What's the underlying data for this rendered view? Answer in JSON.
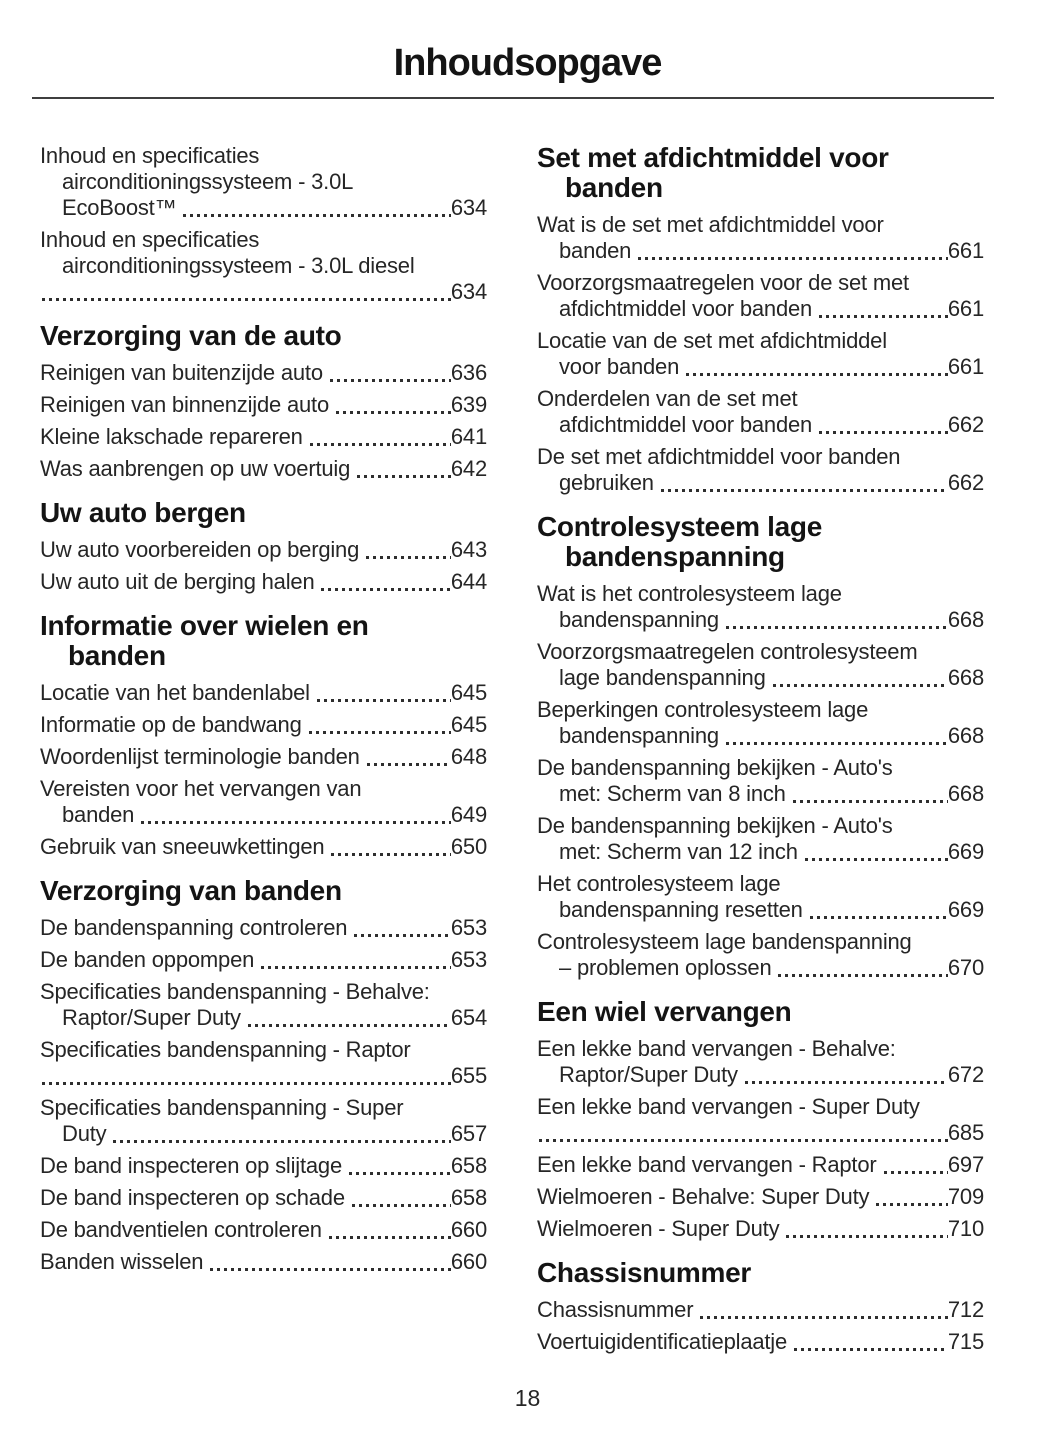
{
  "page": {
    "title": "Inhoudsopgave",
    "page_number": "18"
  },
  "colors": {
    "text": "#262626",
    "heading": "#141414",
    "rule": "#3f3f3f"
  },
  "columns": [
    {
      "sections": [
        {
          "heading_lines": [],
          "entries": [
            {
              "lines": [
                "Inhoud en specificaties",
                "airconditioningssysteem - 3.0L",
                "EcoBoost™"
              ],
              "page": "634"
            },
            {
              "lines": [
                "Inhoud en specificaties",
                "airconditioningssysteem - 3.0L diesel",
                ""
              ],
              "page": "634"
            }
          ]
        },
        {
          "heading_lines": [
            "Verzorging van de auto"
          ],
          "entries": [
            {
              "lines": [
                "Reinigen van buitenzijde auto"
              ],
              "page": "636"
            },
            {
              "lines": [
                "Reinigen van binnenzijde auto"
              ],
              "page": "639"
            },
            {
              "lines": [
                "Kleine lakschade repareren"
              ],
              "page": "641"
            },
            {
              "lines": [
                "Was aanbrengen op uw voertuig"
              ],
              "page": "642"
            }
          ]
        },
        {
          "heading_lines": [
            "Uw auto bergen"
          ],
          "entries": [
            {
              "lines": [
                "Uw auto voorbereiden op berging"
              ],
              "page": "643"
            },
            {
              "lines": [
                "Uw auto uit de berging halen"
              ],
              "page": "644"
            }
          ]
        },
        {
          "heading_lines": [
            "Informatie over wielen en",
            "banden"
          ],
          "entries": [
            {
              "lines": [
                "Locatie van het bandenlabel"
              ],
              "page": "645"
            },
            {
              "lines": [
                "Informatie op de bandwang"
              ],
              "page": "645"
            },
            {
              "lines": [
                "Woordenlijst terminologie banden"
              ],
              "page": "648"
            },
            {
              "lines": [
                "Vereisten voor het vervangen van",
                "banden"
              ],
              "page": "649"
            },
            {
              "lines": [
                "Gebruik van sneeuwkettingen"
              ],
              "page": "650"
            }
          ]
        },
        {
          "heading_lines": [
            "Verzorging van banden"
          ],
          "entries": [
            {
              "lines": [
                "De bandenspanning controleren"
              ],
              "page": "653"
            },
            {
              "lines": [
                "De banden oppompen"
              ],
              "page": "653"
            },
            {
              "lines": [
                "Specificaties bandenspanning - Behalve:",
                "Raptor/Super Duty"
              ],
              "page": "654"
            },
            {
              "lines": [
                "Specificaties bandenspanning - Raptor",
                ""
              ],
              "page": "655"
            },
            {
              "lines": [
                "Specificaties bandenspanning - Super",
                "Duty"
              ],
              "page": "657"
            },
            {
              "lines": [
                "De band inspecteren op slijtage"
              ],
              "page": "658"
            },
            {
              "lines": [
                "De band inspecteren op schade"
              ],
              "page": "658"
            },
            {
              "lines": [
                "De bandventielen controleren"
              ],
              "page": "660"
            },
            {
              "lines": [
                "Banden wisselen"
              ],
              "page": "660"
            }
          ]
        }
      ]
    },
    {
      "sections": [
        {
          "heading_lines": [
            "Set met afdichtmiddel voor",
            "banden"
          ],
          "entries": [
            {
              "lines": [
                "Wat is de set met afdichtmiddel voor",
                "banden"
              ],
              "page": "661"
            },
            {
              "lines": [
                "Voorzorgsmaatregelen voor de set met",
                "afdichtmiddel voor banden"
              ],
              "page": "661"
            },
            {
              "lines": [
                "Locatie van de set met afdichtmiddel",
                "voor banden"
              ],
              "page": "661"
            },
            {
              "lines": [
                "Onderdelen van de set met",
                "afdichtmiddel voor banden"
              ],
              "page": "662"
            },
            {
              "lines": [
                "De set met afdichtmiddel voor banden",
                "gebruiken"
              ],
              "page": "662"
            }
          ]
        },
        {
          "heading_lines": [
            "Controlesysteem lage",
            "bandenspanning"
          ],
          "entries": [
            {
              "lines": [
                "Wat is het controlesysteem lage",
                "bandenspanning"
              ],
              "page": "668"
            },
            {
              "lines": [
                "Voorzorgsmaatregelen controlesysteem",
                "lage bandenspanning"
              ],
              "page": "668"
            },
            {
              "lines": [
                "Beperkingen controlesysteem lage",
                "bandenspanning"
              ],
              "page": "668"
            },
            {
              "lines": [
                "De bandenspanning bekijken - Auto's",
                "met: Scherm van 8 inch"
              ],
              "page": "668"
            },
            {
              "lines": [
                "De bandenspanning bekijken - Auto's",
                "met: Scherm van 12 inch"
              ],
              "page": "669"
            },
            {
              "lines": [
                "Het controlesysteem lage",
                "bandenspanning resetten"
              ],
              "page": "669"
            },
            {
              "lines": [
                "Controlesysteem lage bandenspanning",
                "– problemen oplossen"
              ],
              "page": "670"
            }
          ]
        },
        {
          "heading_lines": [
            "Een wiel vervangen"
          ],
          "entries": [
            {
              "lines": [
                "Een lekke band vervangen - Behalve:",
                "Raptor/Super Duty"
              ],
              "page": "672"
            },
            {
              "lines": [
                "Een lekke band vervangen - Super Duty",
                ""
              ],
              "page": "685"
            },
            {
              "lines": [
                "Een lekke band vervangen - Raptor"
              ],
              "page": "697"
            },
            {
              "lines": [
                "Wielmoeren - Behalve: Super Duty"
              ],
              "page": "709"
            },
            {
              "lines": [
                "Wielmoeren - Super Duty"
              ],
              "page": "710"
            }
          ]
        },
        {
          "heading_lines": [
            "Chassisnummer"
          ],
          "entries": [
            {
              "lines": [
                "Chassisnummer"
              ],
              "page": "712"
            },
            {
              "lines": [
                "Voertuigidentificatieplaatje"
              ],
              "page": "715"
            }
          ]
        }
      ]
    }
  ]
}
